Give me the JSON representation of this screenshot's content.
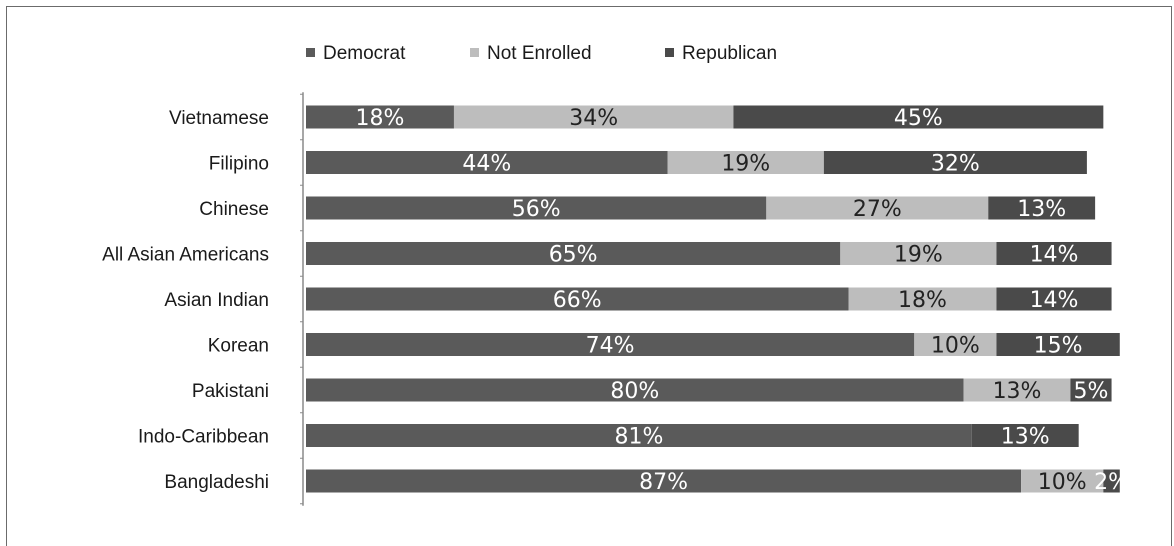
{
  "chart_data": {
    "type": "bar",
    "orientation": "horizontal",
    "stacked": true,
    "percent_stacked": true,
    "categories": [
      "Vietnamese",
      "Filipino",
      "Chinese",
      "All Asian Americans",
      "Asian Indian",
      "Korean",
      "Pakistani",
      "Indo-Caribbean",
      "Bangladeshi"
    ],
    "series": [
      {
        "name": "Democrat",
        "values": [
          18,
          44,
          56,
          65,
          66,
          74,
          80,
          81,
          87
        ],
        "labels": [
          "18%",
          "44%",
          "56%",
          "65%",
          "66%",
          "74%",
          "80%",
          "81%",
          "87%"
        ],
        "color": "#5a5a5a",
        "label_color": "#ffffff"
      },
      {
        "name": "Not Enrolled",
        "values": [
          34,
          19,
          27,
          19,
          18,
          10,
          13,
          0,
          10
        ],
        "labels": [
          "34%",
          "19%",
          "27%",
          "19%",
          "18%",
          "10%",
          "13%",
          "",
          "10%"
        ],
        "color": "#bdbdbd",
        "label_color": "#222222"
      },
      {
        "name": "Republican",
        "values": [
          45,
          32,
          13,
          14,
          14,
          15,
          5,
          13,
          2
        ],
        "labels": [
          "45%",
          "32%",
          "13%",
          "14%",
          "14%",
          "15%",
          "5%",
          "13%",
          "2%"
        ],
        "color": "#4a4a4a",
        "label_color": "#ffffff"
      }
    ],
    "legend_position": "top",
    "grid": false,
    "xlim": [
      0,
      100
    ],
    "title": "",
    "xlabel": "",
    "ylabel": ""
  }
}
